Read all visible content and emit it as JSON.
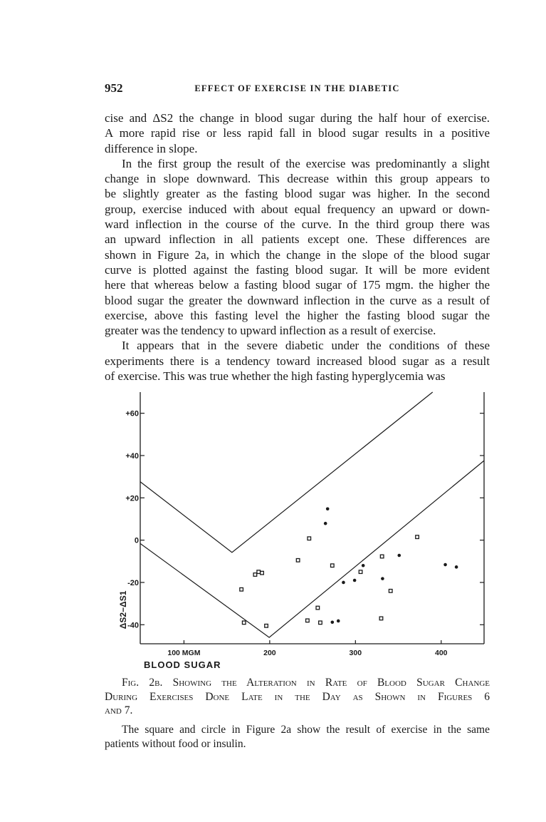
{
  "header": {
    "page_number": "952",
    "running_title": "EFFECT OF EXERCISE IN THE DIABETIC"
  },
  "body": {
    "paragraphs": [
      {
        "indent": false,
        "lines": [
          "cise and ΔS2 the change in blood sugar during the half hour of exercise.",
          "A more rapid rise or less rapid fall in blood sugar results in a positive",
          "difference in slope."
        ]
      },
      {
        "indent": true,
        "lines": [
          "In the first group the result of the exercise was predominantly a slight",
          "change in slope downward.  This decrease within this group appears to",
          "be slightly greater as the fasting blood sugar was higher.  In the second",
          "group, exercise induced with about equal frequency an upward or down-",
          "ward inflection in the course of the curve.  In the third group there was",
          "an upward inflection in all patients except one.  These differences are",
          "shown in Figure 2a, in which the change in the slope of the blood sugar",
          "curve is plotted against the fasting blood sugar.  It will be more evident",
          "here that whereas below a fasting blood sugar of 175 mgm. the higher the",
          "blood sugar the greater the downward inflection in the curve as a result of",
          "exercise, above this fasting level the higher the fasting blood sugar the",
          "greater was the tendency to upward inflection as a result of exercise."
        ]
      },
      {
        "indent": true,
        "lines": [
          "It appears that in the severe diabetic under the conditions of these",
          "experiments there is a tendency toward increased blood sugar as a result",
          "of exercise.  This was true whether the high fasting hyperglycemia was"
        ]
      }
    ]
  },
  "chart_data": {
    "type": "scatter",
    "xlabel": "BLOOD SUGAR",
    "ylabel": "ΔS2−ΔS1",
    "xlim": [
      49,
      450
    ],
    "ylim": [
      -49,
      70
    ],
    "x_ticks": [
      {
        "value": 100,
        "label": "100 MGM"
      },
      {
        "value": 200,
        "label": "200"
      },
      {
        "value": 300,
        "label": "300"
      },
      {
        "value": 400,
        "label": "400"
      }
    ],
    "y_ticks": [
      {
        "value": 60,
        "label": "+60"
      },
      {
        "value": 40,
        "label": "+40"
      },
      {
        "value": 20,
        "label": "+20"
      },
      {
        "value": 0,
        "label": "0"
      },
      {
        "value": -20,
        "label": "-20"
      },
      {
        "value": -40,
        "label": "-40"
      }
    ],
    "grid": false,
    "marker_colors": {
      "ink": "#1a1a1a"
    },
    "series": [
      {
        "marker": "square",
        "points": [
          [
            167,
            -23.3
          ],
          [
            170,
            -39
          ],
          [
            183,
            -16.3
          ],
          [
            187,
            -15
          ],
          [
            191,
            -15.5
          ],
          [
            196,
            -40.5
          ],
          [
            233,
            -9.5
          ],
          [
            246,
            0.8
          ],
          [
            244,
            -38
          ],
          [
            256,
            -32
          ],
          [
            259,
            -39
          ],
          [
            273,
            -12
          ],
          [
            306,
            -15
          ],
          [
            331,
            -7.7
          ],
          [
            330,
            -37
          ],
          [
            341,
            -24
          ],
          [
            372,
            1.5
          ]
        ]
      },
      {
        "marker": "circle",
        "points": [
          [
            267.5,
            14.8
          ],
          [
            265,
            7.9
          ],
          [
            273,
            -38.8
          ],
          [
            280,
            -38.2
          ],
          [
            286,
            -20
          ],
          [
            299,
            -19
          ],
          [
            309,
            -12
          ],
          [
            331.6,
            -18.2
          ],
          [
            351,
            -7.2
          ],
          [
            404.8,
            -11.6
          ],
          [
            417.7,
            -12.7
          ]
        ]
      }
    ],
    "boundary_lines": [
      {
        "points": [
          [
            49,
            27.6
          ],
          [
            156,
            -5.8
          ],
          [
            390,
            70
          ]
        ]
      },
      {
        "points": [
          [
            49,
            -1.6
          ],
          [
            199.4,
            -46
          ],
          [
            450,
            37.6
          ]
        ]
      }
    ]
  },
  "caption": {
    "lines": [
      "Fig. 2b.  Showing the Alteration in Rate of Blood Sugar Change",
      "During Exercises Done Late in the Day as Shown in Figures 6",
      "and 7."
    ]
  },
  "note": {
    "lines": [
      "The square and circle in Figure 2a show the result of exercise in the same",
      "patients without food or insulin."
    ]
  }
}
